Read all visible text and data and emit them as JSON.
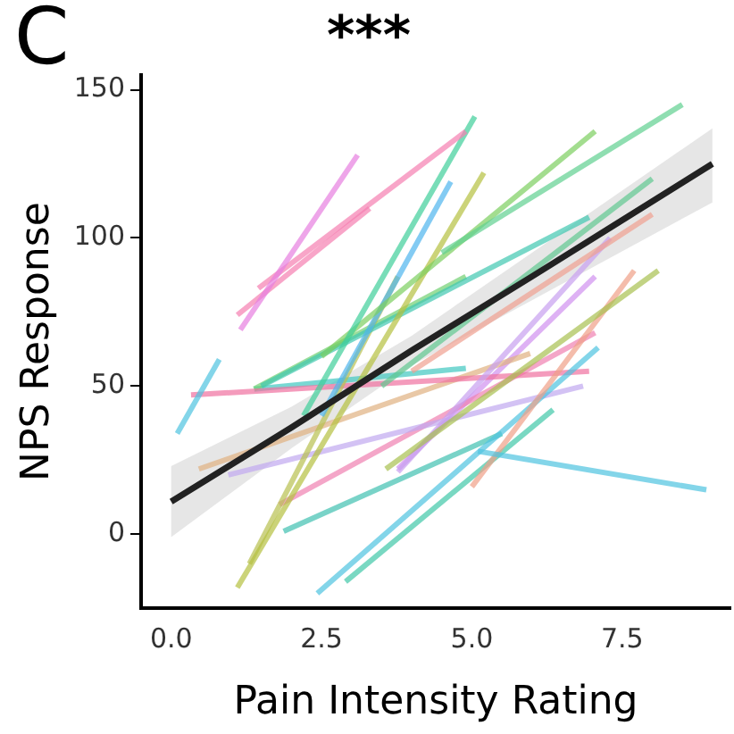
{
  "chart_data": {
    "type": "line",
    "title": "***",
    "annotations": [
      "C"
    ],
    "xlabel": "Pain Intensity Rating",
    "ylabel": "NPS Response",
    "xlim": [
      -0.5,
      9.3
    ],
    "ylim": [
      -25,
      155
    ],
    "xticks": [
      {
        "value": 0,
        "label": "0.0"
      },
      {
        "value": 2.5,
        "label": "2.5"
      },
      {
        "value": 5,
        "label": "5.0"
      },
      {
        "value": 7.5,
        "label": "7.5"
      }
    ],
    "yticks": [
      0,
      50,
      100,
      150
    ],
    "grid": false,
    "marker": "none",
    "line_style": "solid",
    "series": [
      {
        "color": "#4fc3e0",
        "x": [
          5.1,
          8.9
        ],
        "values": [
          28,
          15
        ]
      },
      {
        "color": "#4fc3e0",
        "x": [
          0.1,
          0.8
        ],
        "values": [
          34,
          59
        ]
      },
      {
        "color": "#e77fe0",
        "x": [
          1.15,
          3.1
        ],
        "values": [
          69,
          128
        ]
      },
      {
        "color": "#f57fb0",
        "x": [
          1.1,
          3.3
        ],
        "values": [
          74,
          110
        ]
      },
      {
        "color": "#f57fb0",
        "x": [
          1.45,
          4.9
        ],
        "values": [
          83,
          136
        ]
      },
      {
        "color": "#3fcf9a",
        "x": [
          2.2,
          5.05
        ],
        "values": [
          40,
          141
        ]
      },
      {
        "color": "#60d090",
        "x": [
          4.5,
          8.5
        ],
        "values": [
          95,
          145
        ]
      },
      {
        "color": "#7ccf60",
        "x": [
          2.5,
          7.05
        ],
        "values": [
          60,
          136
        ]
      },
      {
        "color": "#4fb5ee",
        "x": [
          2.5,
          4.65
        ],
        "values": [
          40,
          119
        ]
      },
      {
        "color": "#b5c040",
        "x": [
          1.1,
          5.2
        ],
        "values": [
          -18,
          122
        ]
      },
      {
        "color": "#60c890",
        "x": [
          3.5,
          8.0
        ],
        "values": [
          50,
          120
        ]
      },
      {
        "color": "#40c8b0",
        "x": [
          1.5,
          6.95
        ],
        "values": [
          50,
          107
        ]
      },
      {
        "color": "#f0a090",
        "x": [
          4.0,
          8.0
        ],
        "values": [
          55,
          108
        ]
      },
      {
        "color": "#a8c050",
        "x": [
          3.57,
          8.1
        ],
        "values": [
          22,
          89
        ]
      },
      {
        "color": "#c8a0f0",
        "x": [
          3.77,
          7.3
        ],
        "values": [
          21,
          100
        ]
      },
      {
        "color": "#f0a088",
        "x": [
          5.0,
          7.7
        ],
        "values": [
          16,
          89
        ]
      },
      {
        "color": "#4fc3e0",
        "x": [
          2.43,
          7.1
        ],
        "values": [
          -20,
          63
        ]
      },
      {
        "color": "#40c8a8",
        "x": [
          2.9,
          6.35
        ],
        "values": [
          -16,
          42
        ]
      },
      {
        "color": "#40c0b0",
        "x": [
          1.87,
          5.5
        ],
        "values": [
          1,
          34
        ]
      },
      {
        "color": "#b8c050",
        "x": [
          1.3,
          3.77
        ],
        "values": [
          -10,
          87
        ]
      },
      {
        "color": "#f070a0",
        "x": [
          0.33,
          6.95
        ],
        "values": [
          47,
          55
        ]
      },
      {
        "color": "#c0a8f0",
        "x": [
          0.95,
          6.85
        ],
        "values": [
          20,
          50
        ]
      },
      {
        "color": "#e0b080",
        "x": [
          0.46,
          5.97
        ],
        "values": [
          22,
          61
        ]
      },
      {
        "color": "#f080b0",
        "x": [
          1.8,
          7.05
        ],
        "values": [
          10,
          68
        ]
      },
      {
        "color": "#70d070",
        "x": [
          1.38,
          4.9
        ],
        "values": [
          49,
          87
        ]
      },
      {
        "color": "#40c8c0",
        "x": [
          1.38,
          4.9
        ],
        "values": [
          49,
          56
        ]
      },
      {
        "color": "#d090f0",
        "x": [
          3.77,
          7.05
        ],
        "values": [
          22,
          87
        ]
      },
      {
        "color": "#222222",
        "x": [
          0,
          2,
          4,
          6,
          9
        ],
        "values": [
          11,
          36,
          62,
          87,
          125
        ],
        "lower": [
          -1,
          29,
          57,
          79,
          112
        ],
        "upper": [
          23,
          43,
          67,
          95,
          137
        ]
      }
    ]
  }
}
